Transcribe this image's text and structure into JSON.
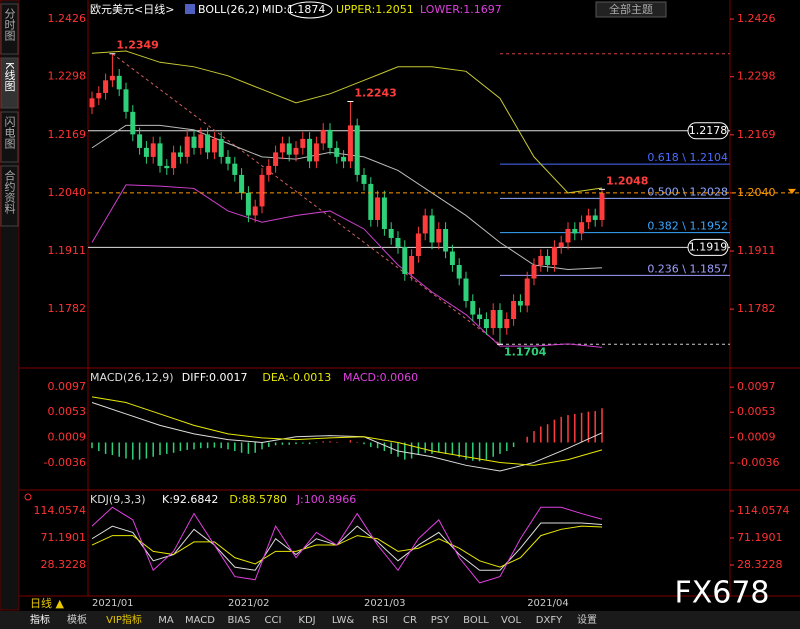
{
  "header": {
    "title": "欧元美元<日线>",
    "indicator": "BOLL(26,2)",
    "mid": "MID:1.1874",
    "upper": "UPPER:1.2051",
    "lower": "LOWER:1.1697",
    "theme_button": "全部主题"
  },
  "side_tabs": [
    "分时图",
    "K线图",
    "闪电图",
    "合约资料"
  ],
  "period_button": "日线 ▲",
  "watermark": "FX678",
  "toolbar": [
    "指标",
    "模板",
    "VIP指标",
    "MA",
    "MACD",
    "BIAS",
    "CCI",
    "KDJ",
    "LW&",
    "RSI",
    "CR",
    "PSY",
    "BOLL",
    "VOL",
    "DXFY",
    "设置"
  ],
  "chart_data": [
    {
      "type": "candlestick",
      "categories": [
        "2021/01",
        null,
        null,
        null,
        null,
        null,
        null,
        null,
        null,
        null,
        null,
        null,
        null,
        null,
        null,
        null,
        null,
        null,
        null,
        null,
        "2021/02",
        null,
        null,
        null,
        null,
        null,
        null,
        null,
        null,
        null,
        null,
        null,
        null,
        null,
        null,
        null,
        null,
        null,
        null,
        null,
        "2021/03",
        null,
        null,
        null,
        null,
        null,
        null,
        null,
        null,
        null,
        null,
        null,
        null,
        null,
        null,
        null,
        null,
        null,
        null,
        null,
        null,
        null,
        null,
        null,
        "2021/04",
        null,
        null,
        null,
        null,
        null,
        null,
        null,
        null,
        null,
        null,
        null
      ],
      "open": [
        1.223,
        1.225,
        1.2262,
        1.229,
        1.23,
        1.227,
        1.222,
        1.217,
        1.214,
        1.212,
        1.215,
        1.21,
        1.2095,
        1.213,
        1.212,
        1.2165,
        1.214,
        1.217,
        1.213,
        1.216,
        1.212,
        1.2105,
        1.208,
        1.204,
        1.199,
        1.201,
        1.208,
        1.21,
        1.213,
        1.215,
        1.2125,
        1.214,
        1.216,
        1.211,
        1.215,
        1.218,
        1.214,
        1.212,
        1.211,
        1.219,
        1.208,
        1.206,
        1.198,
        1.203,
        1.196,
        1.194,
        1.192,
        1.186,
        1.19,
        1.195,
        1.199,
        1.193,
        1.196,
        1.191,
        1.188,
        1.185,
        1.18,
        1.177,
        1.176,
        1.174,
        1.178,
        1.174,
        1.176,
        1.18,
        1.179,
        1.185,
        1.188,
        1.19,
        1.188,
        1.192,
        1.193,
        1.196,
        1.195,
        1.1975,
        1.199,
        1.198
      ],
      "high": [
        1.2265,
        1.2277,
        1.2305,
        1.2349,
        1.2315,
        1.2285,
        1.2235,
        1.2185,
        1.2155,
        1.2165,
        1.2165,
        1.2115,
        1.2145,
        1.2145,
        1.218,
        1.218,
        1.2185,
        1.2185,
        1.2175,
        1.2175,
        1.2135,
        1.212,
        1.2095,
        1.2055,
        1.2025,
        1.2095,
        1.2115,
        1.2145,
        1.2165,
        1.2165,
        1.2155,
        1.2175,
        1.2175,
        1.2165,
        1.2195,
        1.2195,
        1.2155,
        1.2135,
        1.2243,
        1.2205,
        1.2095,
        1.2075,
        1.2045,
        1.2045,
        1.1975,
        1.1955,
        1.1935,
        1.1915,
        1.1965,
        1.2005,
        1.2005,
        1.1975,
        1.1975,
        1.1925,
        1.1895,
        1.1865,
        1.1815,
        1.1785,
        1.1775,
        1.1795,
        1.1795,
        1.1775,
        1.1815,
        1.1815,
        1.1865,
        1.1895,
        1.1915,
        1.1915,
        1.1935,
        1.1945,
        1.1975,
        1.1975,
        1.199,
        1.2005,
        1.2005,
        1.2048
      ],
      "low": [
        1.2215,
        1.2235,
        1.2247,
        1.2275,
        1.2255,
        1.2205,
        1.2155,
        1.2125,
        1.2105,
        1.2105,
        1.2085,
        1.208,
        1.208,
        1.2105,
        1.2105,
        1.2125,
        1.2125,
        1.2115,
        1.2115,
        1.2105,
        1.209,
        1.2065,
        1.2025,
        1.1975,
        1.1975,
        1.1995,
        1.2065,
        1.2085,
        1.2115,
        1.211,
        1.211,
        1.2125,
        1.2095,
        1.2095,
        1.2135,
        1.2125,
        1.2105,
        1.2095,
        1.2095,
        1.2065,
        1.2045,
        1.1965,
        1.1965,
        1.1945,
        1.1925,
        1.1905,
        1.1845,
        1.1845,
        1.1885,
        1.1935,
        1.1915,
        1.1915,
        1.1895,
        1.1865,
        1.1835,
        1.1785,
        1.1755,
        1.1745,
        1.1725,
        1.1725,
        1.1704,
        1.1725,
        1.1745,
        1.1775,
        1.1775,
        1.1835,
        1.1865,
        1.1865,
        1.1865,
        1.1905,
        1.1915,
        1.1935,
        1.1935,
        1.196,
        1.1965,
        1.1965
      ],
      "close": [
        1.225,
        1.2262,
        1.229,
        1.23,
        1.227,
        1.222,
        1.217,
        1.214,
        1.212,
        1.215,
        1.21,
        1.2095,
        1.213,
        1.212,
        1.2165,
        1.214,
        1.217,
        1.213,
        1.216,
        1.212,
        1.2105,
        1.208,
        1.204,
        1.199,
        1.201,
        1.208,
        1.21,
        1.213,
        1.215,
        1.2125,
        1.214,
        1.216,
        1.211,
        1.215,
        1.218,
        1.214,
        1.212,
        1.211,
        1.219,
        1.208,
        1.206,
        1.198,
        1.203,
        1.196,
        1.194,
        1.192,
        1.186,
        1.19,
        1.195,
        1.199,
        1.193,
        1.196,
        1.191,
        1.188,
        1.185,
        1.18,
        1.177,
        1.176,
        1.174,
        1.178,
        1.174,
        1.176,
        1.18,
        1.179,
        1.185,
        1.188,
        1.19,
        1.188,
        1.192,
        1.193,
        1.196,
        1.195,
        1.1975,
        1.199,
        1.198,
        1.204
      ],
      "up_color": "#ff3c3c",
      "down_color": "#2fd07a",
      "ylim": [
        1.1658,
        1.2455
      ],
      "yticks": [
        1.2426,
        1.2298,
        1.2169,
        {
          "value": 1.204,
          "label": "1.2040"
        },
        1.1911,
        1.1782
      ],
      "series": [
        {
          "color": "#c8c832",
          "x": [
            0,
            5,
            10,
            15,
            20,
            25,
            30,
            35,
            40,
            45,
            50,
            55,
            60,
            65,
            70,
            75
          ],
          "values": [
            1.235,
            1.2355,
            1.233,
            1.232,
            1.23,
            1.227,
            1.224,
            1.226,
            1.229,
            1.232,
            1.232,
            1.231,
            1.225,
            1.212,
            1.204,
            1.2051
          ]
        },
        {
          "color": "#bbbbbb",
          "x": [
            0,
            5,
            10,
            15,
            20,
            25,
            30,
            35,
            40,
            45,
            50,
            55,
            60,
            65,
            70,
            75
          ],
          "values": [
            1.214,
            1.219,
            1.219,
            1.218,
            1.215,
            1.212,
            1.2115,
            1.213,
            1.212,
            1.209,
            1.204,
            1.199,
            1.193,
            1.188,
            1.187,
            1.1874
          ]
        },
        {
          "color": "#d040d0",
          "x": [
            0,
            5,
            10,
            15,
            20,
            25,
            30,
            35,
            40,
            45,
            50,
            55,
            60,
            65,
            70,
            75
          ],
          "values": [
            1.193,
            1.2058,
            1.2055,
            1.205,
            1.2,
            1.1975,
            1.199,
            1.2,
            1.196,
            1.188,
            1.182,
            1.177,
            1.17,
            1.17,
            1.1705,
            1.1697
          ]
        }
      ],
      "levels": [
        1.2178,
        1.1919
      ],
      "fibonacci": {
        "range": [
          1.2349,
          1.1704
        ],
        "levels": [
          {
            "value": 1.2104,
            "label": "0.618 \\ 1.2104",
            "color": "#4a6cff"
          },
          {
            "value": 1.2028,
            "label": "0.500 \\ 1.2028",
            "color": "#8fa8ff"
          },
          {
            "value": 1.1952,
            "label": "0.382 \\ 1.1952",
            "color": "#3aa8ff"
          },
          {
            "value": 1.1857,
            "label": "0.236 \\ 1.1857",
            "color": "#a0a0ff"
          }
        ]
      },
      "extreme_labels": [
        1.2349,
        1.2243,
        1.1704,
        1.2048
      ]
    },
    {
      "type": "macd",
      "title": "MACD(26,12,9)",
      "readouts": [
        {
          "text": "DIFF:0.0017",
          "color": "#ffffff"
        },
        {
          "text": "DEA:-0.0013",
          "color": "#e8e800"
        },
        {
          "text": "MACD:0.0060",
          "color": "#e040e0"
        }
      ],
      "ylim": [
        -0.0078,
        0.0127
      ],
      "yticks": [
        0.0097,
        0.0053,
        0.0009,
        -0.0036
      ],
      "histogram": [
        -0.001,
        -0.0015,
        -0.002,
        -0.0022,
        -0.0025,
        -0.0028,
        -0.003,
        -0.003,
        -0.0028,
        -0.0025,
        -0.0022,
        -0.002,
        -0.0018,
        -0.0015,
        -0.0013,
        -0.0012,
        -0.001,
        -0.001,
        -0.0009,
        -0.001,
        -0.0012,
        -0.0015,
        -0.0018,
        -0.002,
        -0.0018,
        -0.0012,
        -0.0008,
        -0.0005,
        -0.0004,
        -0.0004,
        -0.0003,
        -0.0002,
        -0.0003,
        -0.0001,
        0.0002,
        0.0002,
        0.0001,
        0.0,
        0.0004,
        0.0001,
        -0.0003,
        -0.0008,
        -0.001,
        -0.0015,
        -0.002,
        -0.0025,
        -0.003,
        -0.0028,
        -0.0022,
        -0.0018,
        -0.002,
        -0.0018,
        -0.002,
        -0.0022,
        -0.0026,
        -0.003,
        -0.0032,
        -0.0033,
        -0.003,
        -0.0025,
        -0.002,
        -0.0015,
        -0.0008,
        0.0,
        0.001,
        0.002,
        0.0028,
        0.0032,
        0.004,
        0.0045,
        0.0048,
        0.005,
        0.0052,
        0.0054,
        0.0055,
        0.006
      ],
      "up_color": "#ff3c3c",
      "down_color": "#2fd07a",
      "series": [
        {
          "color": "#dddddd",
          "x": [
            0,
            5,
            10,
            15,
            20,
            25,
            30,
            35,
            40,
            45,
            50,
            55,
            60,
            65,
            70,
            75
          ],
          "values": [
            0.007,
            0.005,
            0.003,
            0.0015,
            0.0005,
            0.0,
            0.001,
            0.0012,
            0.001,
            -0.0015,
            -0.0025,
            -0.004,
            -0.005,
            -0.0035,
            -0.001,
            0.0017
          ]
        },
        {
          "color": "#e8e800",
          "x": [
            0,
            5,
            10,
            15,
            20,
            25,
            30,
            35,
            40,
            45,
            50,
            55,
            60,
            65,
            70,
            75
          ],
          "values": [
            0.008,
            0.007,
            0.005,
            0.003,
            0.0015,
            0.0008,
            0.0005,
            0.0008,
            0.001,
            0.0,
            -0.0015,
            -0.0025,
            -0.0035,
            -0.004,
            -0.003,
            -0.0013
          ]
        }
      ]
    },
    {
      "type": "kdj",
      "title": "KDJ(9,3,3)",
      "readouts": [
        {
          "text": "K:92.6842",
          "color": "#ffffff"
        },
        {
          "text": "D:88.5780",
          "color": "#e8e800"
        },
        {
          "text": "J:100.8966",
          "color": "#e040e0"
        }
      ],
      "ylim": [
        -14.5,
        144.2
      ],
      "yticks": [
        114.0574,
        71.1901,
        28.3228
      ],
      "series": [
        {
          "color": "#dddddd",
          "x": [
            0,
            3,
            6,
            9,
            12,
            15,
            18,
            21,
            24,
            27,
            30,
            33,
            36,
            39,
            42,
            45,
            48,
            51,
            54,
            57,
            60,
            63,
            66,
            69,
            72,
            75
          ],
          "values": [
            70,
            90,
            80,
            35,
            45,
            85,
            60,
            25,
            20,
            70,
            45,
            70,
            60,
            90,
            65,
            35,
            60,
            80,
            45,
            20,
            20,
            55,
            95,
            95,
            95,
            92.6842
          ]
        },
        {
          "color": "#e8e800",
          "x": [
            0,
            3,
            6,
            9,
            12,
            15,
            18,
            21,
            24,
            27,
            30,
            33,
            36,
            39,
            42,
            45,
            48,
            51,
            54,
            57,
            60,
            63,
            66,
            69,
            72,
            75
          ],
          "values": [
            60,
            75,
            75,
            50,
            45,
            65,
            65,
            40,
            30,
            50,
            50,
            60,
            60,
            75,
            70,
            50,
            55,
            70,
            55,
            35,
            25,
            40,
            75,
            85,
            90,
            88.578
          ]
        },
        {
          "color": "#e040e0",
          "x": [
            0,
            3,
            6,
            9,
            12,
            15,
            18,
            21,
            24,
            27,
            30,
            33,
            36,
            39,
            42,
            45,
            48,
            51,
            54,
            57,
            60,
            63,
            66,
            69,
            72,
            75
          ],
          "values": [
            90,
            120,
            100,
            20,
            50,
            110,
            60,
            10,
            5,
            90,
            40,
            80,
            60,
            110,
            60,
            20,
            70,
            100,
            40,
            0,
            10,
            70,
            120,
            120,
            110,
            100.8966
          ]
        }
      ]
    }
  ]
}
